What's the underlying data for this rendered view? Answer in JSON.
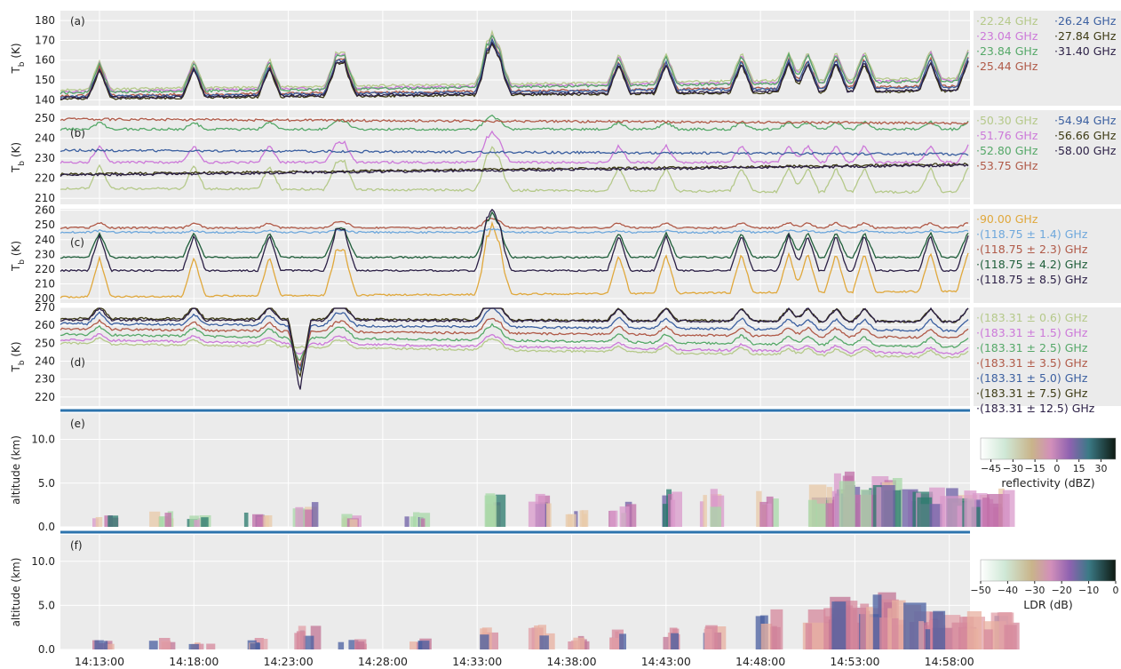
{
  "time_ticks": [
    "14:13:00",
    "14:18:00",
    "14:23:00",
    "14:28:00",
    "14:33:00",
    "14:38:00",
    "14:43:00",
    "14:48:00",
    "14:53:00",
    "14:58:00"
  ],
  "panels": [
    {
      "letter": "(a)",
      "ylabel": "T",
      "ylabel_sub": "b",
      "ylabel_unit": " (K)",
      "ylim": [
        137,
        185
      ],
      "yticks": [
        140,
        150,
        160,
        170,
        180
      ],
      "legend_cols": 2,
      "series": [
        {
          "name": "22.24 GHz",
          "color": "#b5c98a",
          "base": 145,
          "drift": 6,
          "spike": 1.2
        },
        {
          "name": "23.04 GHz",
          "color": "#cc79d9",
          "base": 144,
          "drift": 6,
          "spike": 1.2
        },
        {
          "name": "23.84 GHz",
          "color": "#55a868",
          "base": 143.5,
          "drift": 6,
          "spike": 1.2
        },
        {
          "name": "25.44 GHz",
          "color": "#b05a48",
          "base": 142,
          "drift": 5,
          "spike": 1.2
        },
        {
          "name": "26.24 GHz",
          "color": "#3b5fa0",
          "base": 141.5,
          "drift": 5,
          "spike": 1.2
        },
        {
          "name": "27.84 GHz",
          "color": "#3d3a14",
          "base": 140.5,
          "drift": 4,
          "spike": 1.2
        },
        {
          "name": "31.40 GHz",
          "color": "#2b1f45",
          "base": 141,
          "drift": 4,
          "spike": 1.2
        }
      ]
    },
    {
      "letter": "(b)",
      "ylabel": "T",
      "ylabel_sub": "b",
      "ylabel_unit": " (K)",
      "ylim": [
        207,
        254
      ],
      "yticks": [
        210,
        220,
        230,
        240,
        250
      ],
      "legend_cols": 2,
      "series": [
        {
          "name": "50.30 GHz",
          "color": "#b5c98a",
          "base": 215,
          "drift": -2,
          "spike": 1.0
        },
        {
          "name": "51.76 GHz",
          "color": "#cc79d9",
          "base": 228,
          "drift": 0,
          "spike": 0.7
        },
        {
          "name": "52.80 GHz",
          "color": "#55a868",
          "base": 244.5,
          "drift": 0,
          "spike": 0.3
        },
        {
          "name": "53.75 GHz",
          "color": "#b05a48",
          "base": 249.5,
          "drift": -2,
          "spike": 0.0
        },
        {
          "name": "54.94 GHz",
          "color": "#3b5fa0",
          "base": 234,
          "drift": -2,
          "spike": 0.0
        },
        {
          "name": "56.66 GHz",
          "color": "#3d3a14",
          "base": 222,
          "drift": 5,
          "spike": 0.0
        },
        {
          "name": "58.00 GHz",
          "color": "#2b1f45",
          "base": 221.5,
          "drift": 5,
          "spike": 0.0
        }
      ]
    },
    {
      "letter": "(c)",
      "ylabel": "T",
      "ylabel_sub": "b",
      "ylabel_unit": " (K)",
      "ylim": [
        197,
        261
      ],
      "yticks": [
        200,
        210,
        220,
        230,
        240,
        250,
        260
      ],
      "legend_cols": 1,
      "series": [
        {
          "name": "90.00 GHz",
          "color": "#e0a83c",
          "base": 201,
          "drift": 4,
          "spike": 2.2
        },
        {
          "name": "(118.75 ± 1.4) GHz",
          "color": "#6fa8dc",
          "base": 245,
          "drift": 0,
          "spike": 0.1
        },
        {
          "name": "(118.75 ± 2.3) GHz",
          "color": "#b05a48",
          "base": 248,
          "drift": 0,
          "spike": 0.3
        },
        {
          "name": "(118.75 ± 4.2) GHz",
          "color": "#1f5e3a",
          "base": 228,
          "drift": 0,
          "spike": 1.4
        },
        {
          "name": "(118.75 ± 8.5) GHz",
          "color": "#2b1f45",
          "base": 219,
          "drift": 0,
          "spike": 2.0
        }
      ]
    },
    {
      "letter": "(d)",
      "ylabel": "T",
      "ylabel_sub": "b",
      "ylabel_unit": " (K)",
      "ylim": [
        215,
        270
      ],
      "yticks": [
        220,
        230,
        240,
        250,
        260,
        270
      ],
      "legend_cols": 1,
      "series": [
        {
          "name": "(183.31 ± 0.6) GHz",
          "color": "#b5c98a",
          "base": 250,
          "drift": -8,
          "spike": 0.3
        },
        {
          "name": "(183.31 ± 1.5) GHz",
          "color": "#cc79d9",
          "base": 252,
          "drift": -8,
          "spike": 0.3
        },
        {
          "name": "(183.31 ± 2.5) GHz",
          "color": "#55a868",
          "base": 255,
          "drift": -7,
          "spike": 0.4
        },
        {
          "name": "(183.31 ± 3.5) GHz",
          "color": "#b05a48",
          "base": 258,
          "drift": -5,
          "spike": 0.4
        },
        {
          "name": "(183.31 ± 5.0) GHz",
          "color": "#3b5fa0",
          "base": 261,
          "drift": -4,
          "spike": 0.5
        },
        {
          "name": "(183.31 ± 7.5) GHz",
          "color": "#3d3a14",
          "base": 264,
          "drift": -2,
          "spike": 0.6
        },
        {
          "name": "(183.31 ± 12.5) GHz",
          "color": "#2b1f45",
          "base": 263,
          "drift": -1,
          "spike": 0.6
        }
      ]
    }
  ],
  "radar_panels": [
    {
      "letter": "(e)",
      "ylabel": "altitude (km)",
      "yticks": [
        "0.0",
        "5.0",
        "10.0"
      ],
      "ylim": [
        0,
        13
      ],
      "cbar_label": "reflectivity (dBZ)",
      "cbar_ticks": [
        "−45",
        "−30",
        "−15",
        "0",
        "15",
        "30"
      ],
      "cbar_range": [
        -52,
        40
      ]
    },
    {
      "letter": "(f)",
      "ylabel": "altitude (km)",
      "yticks": [
        "0.0",
        "5.0",
        "10.0"
      ],
      "ylim": [
        0,
        13
      ],
      "cbar_label": "LDR (dB)",
      "cbar_ticks": [
        "−50",
        "−40",
        "−30",
        "−20",
        "−10",
        "0"
      ],
      "cbar_range": [
        -50,
        0
      ]
    }
  ],
  "chart_data": {
    "type": "line",
    "x_range": [
      "14:11:30",
      "14:59:00"
    ],
    "x_ticks": [
      "14:13:00",
      "14:18:00",
      "14:23:00",
      "14:28:00",
      "14:33:00",
      "14:38:00",
      "14:43:00",
      "14:48:00",
      "14:53:00",
      "14:58:00"
    ],
    "grid": true,
    "legend_placement": "right of each panel",
    "events_minutes_after_14_12": [
      1,
      6,
      10,
      13.5,
      14,
      21.5,
      21.8,
      22.2,
      28.5,
      31,
      35,
      37.5,
      38.5,
      40,
      41.5,
      45,
      47,
      50,
      51.5,
      52.5,
      54.5,
      56.5,
      58.5
    ]
  }
}
